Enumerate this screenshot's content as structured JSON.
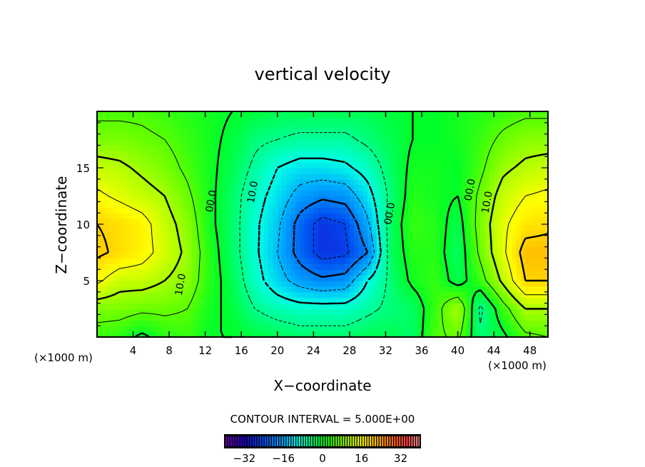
{
  "chart_data": {
    "type": "heatmap",
    "subtype": "filled-contour",
    "title": "vertical velocity",
    "xlabel": "X−coordinate",
    "ylabel": "Z−coordinate",
    "x_unit_left": "(×1000 m)",
    "x_unit_right": "(×1000 m)",
    "xlim": [
      0,
      50
    ],
    "ylim": [
      0,
      20
    ],
    "x_ticks": [
      "4",
      "8",
      "12",
      "16",
      "20",
      "24",
      "28",
      "32",
      "36",
      "40",
      "44",
      "48"
    ],
    "x_tick_values": [
      4,
      8,
      12,
      16,
      20,
      24,
      28,
      32,
      36,
      40,
      44,
      48
    ],
    "y_ticks": [
      "5",
      "10",
      "15"
    ],
    "y_tick_values": [
      5,
      10,
      15
    ],
    "contour_interval_label": "CONTOUR INTERVAL = 5.000E+00",
    "contour_interval": 5,
    "colorbar": {
      "range": [
        -40,
        40
      ],
      "ticks": [
        "−32",
        "−16",
        "0",
        "16",
        "32"
      ],
      "tick_values": [
        -32,
        -16,
        0,
        16,
        32
      ]
    },
    "contour_labels": [
      {
        "text": "00.0",
        "x": 13.0,
        "z": 12.0
      },
      {
        "text": "10.0",
        "x": 17.6,
        "z": 12.8
      },
      {
        "text": "10.0",
        "x": 9.6,
        "z": 4.6
      },
      {
        "text": "00.0",
        "x": 32.8,
        "z": 10.9
      },
      {
        "text": "00.0",
        "x": 41.7,
        "z": 13.0
      },
      {
        "text": "10.0",
        "x": 43.6,
        "z": 11.9
      }
    ],
    "grid_x": [
      0,
      2.5,
      5,
      7.5,
      10,
      12.5,
      15,
      17.5,
      20,
      22.5,
      25,
      27.5,
      30,
      32.5,
      35,
      37.5,
      40,
      42.5,
      45,
      47.5,
      50
    ],
    "grid_z": [
      0,
      2.5,
      5,
      7.5,
      10,
      12.5,
      15,
      17.5,
      20
    ],
    "values": [
      [
        3,
        2,
        -1,
        2,
        3,
        0,
        0,
        -1,
        -2,
        -3,
        -3,
        -3,
        -2,
        -2,
        -3,
        4,
        6,
        -4,
        -1,
        4,
        5
      ],
      [
        7,
        7,
        6,
        6,
        5,
        1,
        -1,
        -5,
        -7,
        -8,
        -8,
        -8,
        -6,
        -4,
        -3,
        3,
        10,
        -6,
        3,
        10,
        10
      ],
      [
        16,
        12,
        12,
        10,
        8,
        2,
        -2,
        -8,
        -13,
        -17,
        -19,
        -18,
        -10,
        -4,
        1,
        3,
        -2,
        3,
        11,
        20,
        20
      ],
      [
        21,
        19,
        17,
        13,
        9,
        2,
        -3,
        -9,
        -15,
        -22,
        -27,
        -26,
        -20,
        -3,
        2,
        2,
        -3,
        6,
        14,
        22,
        22
      ],
      [
        20,
        19,
        17,
        12,
        8,
        1,
        -3,
        -9,
        -14,
        -22,
        -27,
        -25,
        -16,
        -3,
        3,
        2,
        -2,
        7,
        14,
        18,
        19
      ],
      [
        16,
        14,
        12,
        10,
        6,
        1,
        -3,
        -8,
        -12,
        -17,
        -19,
        -18,
        -12,
        -4,
        2,
        1,
        0,
        6,
        12,
        15,
        16
      ],
      [
        12,
        11,
        9,
        7,
        4,
        1,
        -2,
        -6,
        -10,
        -12,
        -12,
        -11,
        -8,
        -3,
        1,
        1,
        0,
        4,
        9,
        11,
        12
      ],
      [
        7,
        7,
        6,
        5,
        3,
        1,
        -1,
        -4,
        -5,
        -6,
        -6,
        -6,
        -4,
        -2,
        0,
        0,
        1,
        3,
        6,
        8,
        8
      ],
      [
        4,
        4,
        4,
        3,
        2,
        1,
        0,
        -1,
        -2,
        -2,
        -2,
        -2,
        -2,
        -1,
        0,
        0,
        1,
        2,
        3,
        4,
        4
      ]
    ],
    "grid": false
  }
}
